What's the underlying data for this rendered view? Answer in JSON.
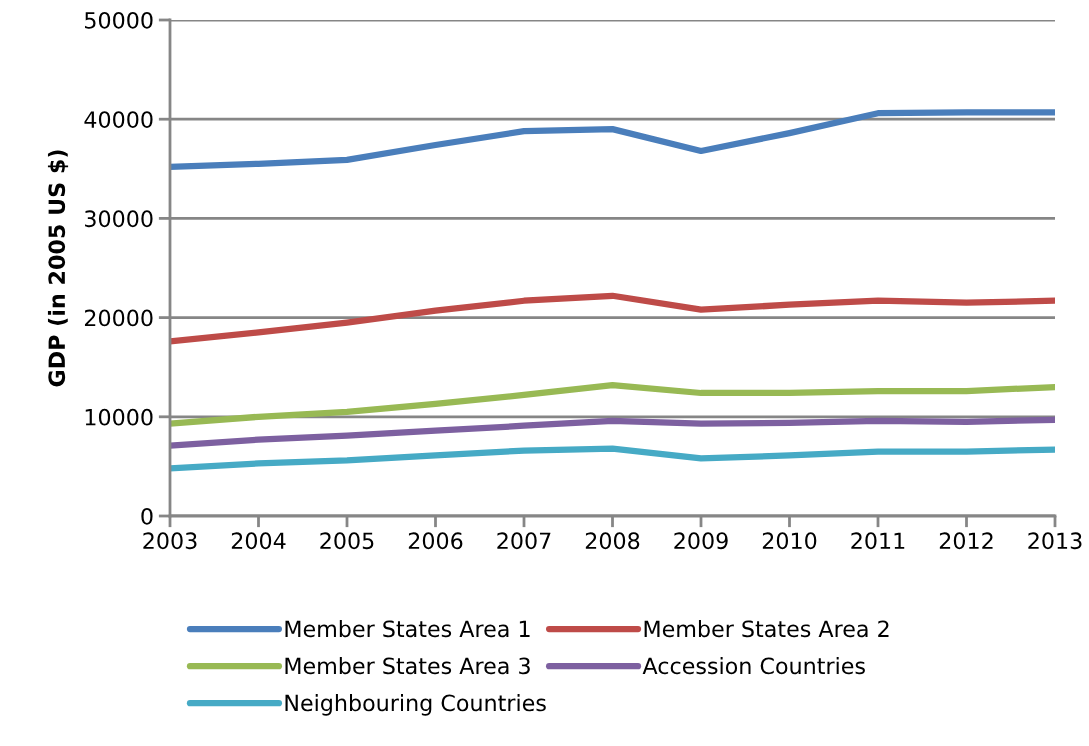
{
  "chart_data": {
    "type": "line",
    "ylabel": "GDP (in 2005 US $)",
    "x": [
      2003,
      2004,
      2005,
      2006,
      2007,
      2008,
      2009,
      2010,
      2011,
      2012,
      2013
    ],
    "xlim": [
      2003,
      2013
    ],
    "xticks": [
      2003,
      2004,
      2005,
      2006,
      2007,
      2008,
      2009,
      2010,
      2011,
      2012,
      2013
    ],
    "ylim": [
      0,
      50000
    ],
    "yticks": [
      0,
      10000,
      20000,
      30000,
      40000,
      50000
    ],
    "grid": "y",
    "legend": "bottom",
    "marker": "none",
    "line_style": "solid",
    "series": [
      {
        "name": "Member States Area 1",
        "color": "#4a7ebb",
        "values": [
          35200,
          35500,
          35900,
          37400,
          38800,
          39000,
          36800,
          38600,
          40600,
          40700,
          40700
        ]
      },
      {
        "name": "Member States Area 2",
        "color": "#be4b48",
        "values": [
          17600,
          18500,
          19500,
          20700,
          21700,
          22200,
          20800,
          21300,
          21700,
          21500,
          21700
        ]
      },
      {
        "name": "Member States Area 3",
        "color": "#98b954",
        "values": [
          9300,
          10000,
          10500,
          11300,
          12200,
          13200,
          12400,
          12400,
          12600,
          12600,
          13000
        ]
      },
      {
        "name": "Accession Countries",
        "color": "#7d60a0",
        "values": [
          7100,
          7700,
          8100,
          8600,
          9100,
          9600,
          9300,
          9400,
          9600,
          9500,
          9700
        ]
      },
      {
        "name": "Neighbouring Countries",
        "color": "#46aac5",
        "values": [
          4800,
          5300,
          5600,
          6100,
          6600,
          6800,
          5800,
          6100,
          6500,
          6500,
          6700
        ]
      }
    ]
  }
}
